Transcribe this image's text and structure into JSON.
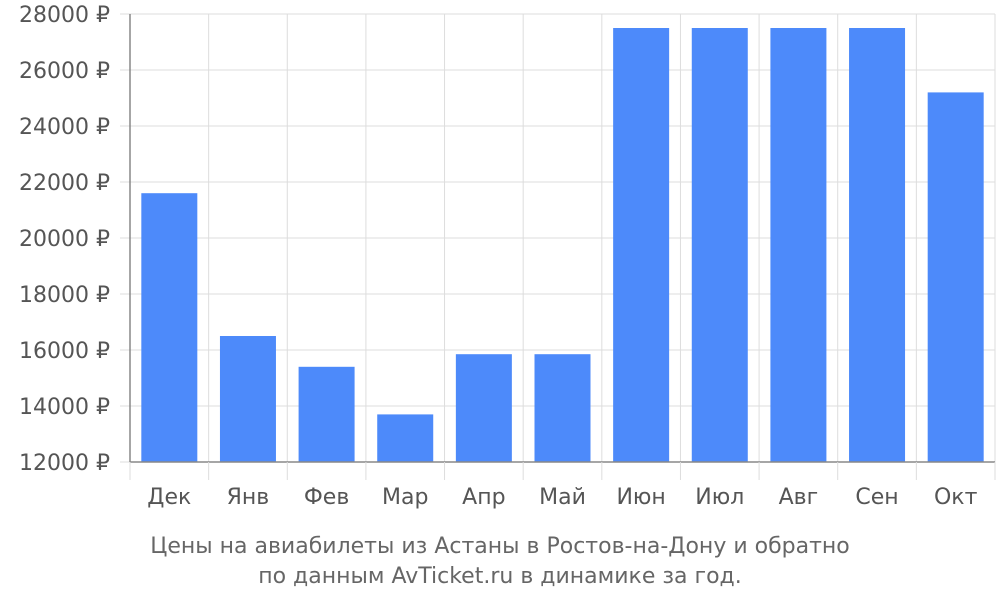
{
  "chart_data": {
    "type": "bar",
    "categories": [
      "Дек",
      "Янв",
      "Фев",
      "Мар",
      "Апр",
      "Май",
      "Июн",
      "Июл",
      "Авг",
      "Сен",
      "Окт"
    ],
    "values": [
      21600,
      16500,
      15400,
      13700,
      15850,
      15850,
      27500,
      27500,
      27500,
      27500,
      25200
    ],
    "ylim": [
      12000,
      28000
    ],
    "yticks": [
      12000,
      14000,
      16000,
      18000,
      20000,
      22000,
      24000,
      26000,
      28000
    ],
    "ytick_suffix": " ₽",
    "grid": true,
    "colors": {
      "bar": "#4d8afa",
      "grid": "#dddddd",
      "axis": "#888888"
    }
  },
  "caption": {
    "line1": "Цены на авиабилеты из Астаны в Ростов-на-Дону и обратно",
    "line2": "по данным AvTicket.ru в динамике за год."
  }
}
